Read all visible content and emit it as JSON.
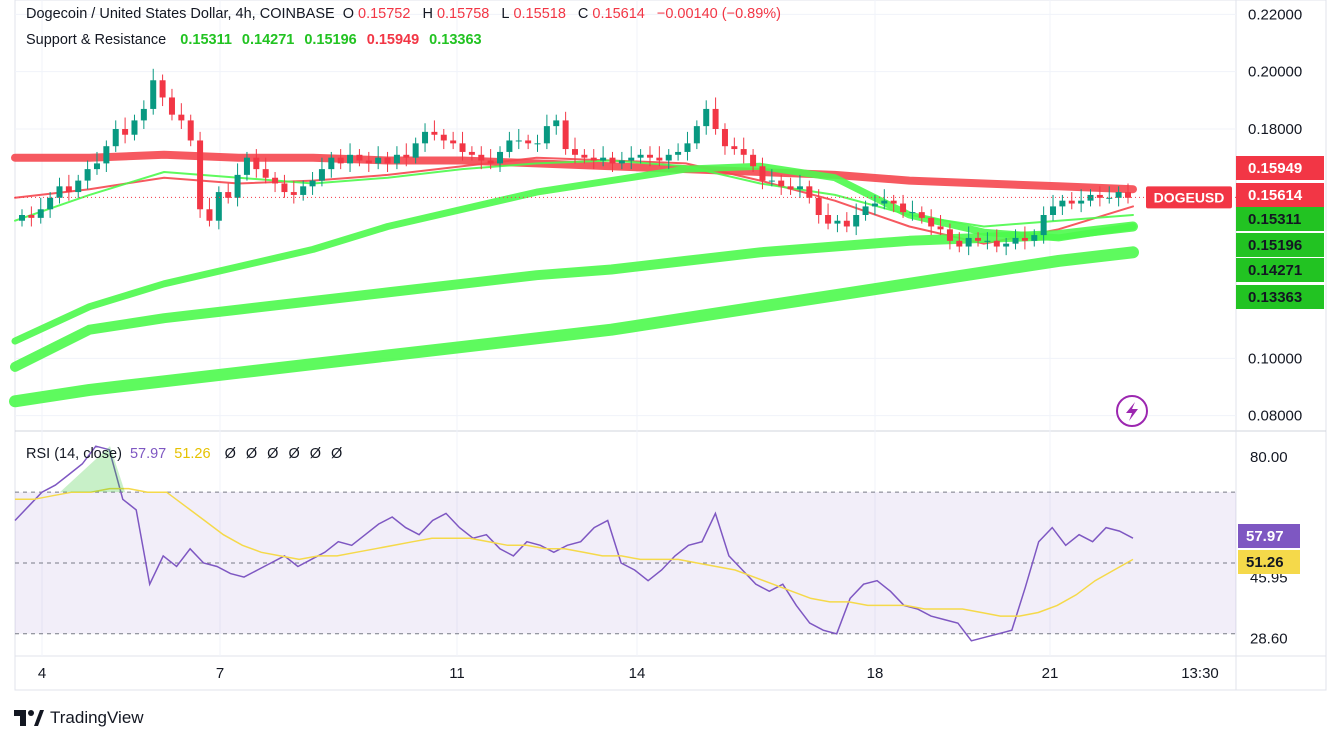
{
  "header": {
    "symbol_line": "Dogecoin / United States Dollar, 4h, COINBASE",
    "o_label": "O",
    "o_value": "0.15752",
    "h_label": "H",
    "h_value": "0.15758",
    "l_label": "L",
    "l_value": "0.15518",
    "c_label": "C",
    "c_value": "0.15614",
    "change": "−0.00140 (−0.89%)",
    "sr_label": "Support & Resistance",
    "sr_values": [
      "0.15311",
      "0.14271",
      "0.15196",
      "0.15949",
      "0.13363"
    ],
    "sr_colors": [
      "#22c322",
      "#22c322",
      "#22c322",
      "#f23645",
      "#22c322"
    ],
    "rsi_label": "RSI (14, close)",
    "rsi_value": "57.97",
    "rsi_ma_value": "51.26",
    "rsi_extra": [
      "Ø",
      "Ø",
      "Ø",
      "Ø",
      "Ø",
      "Ø"
    ]
  },
  "footer": {
    "brand": "TradingView"
  },
  "colors": {
    "up": "#089981",
    "down": "#f23645",
    "rsi": "#7e57c2",
    "rsi_ma": "#f5d94a",
    "green_line": "#4cfa4c",
    "red_line": "#f5474f"
  },
  "chart_data": [
    {
      "type": "candlestick",
      "ylim": [
        0.075,
        0.225
      ],
      "y_ticks": [
        "0.22000",
        "0.20000",
        "0.18000",
        "0.10000",
        "0.08000"
      ],
      "x_ticks": [
        "4",
        "7",
        "11",
        "14",
        "18",
        "21",
        "13:30"
      ],
      "price_labels": [
        {
          "text": "0.15949",
          "value": 0.15949,
          "color": "#f23645"
        },
        {
          "text": "0.15614",
          "value": 0.15614,
          "color": "#f23645"
        },
        {
          "text": "0.15311",
          "value": 0.15311,
          "color": "#22c322"
        },
        {
          "text": "0.15196",
          "value": 0.15196,
          "color": "#22c322"
        },
        {
          "text": "0.14271",
          "value": 0.14271,
          "color": "#22c322"
        },
        {
          "text": "0.13363",
          "value": 0.13363,
          "color": "#22c322"
        }
      ],
      "symbol_tag": "DOGEUSD",
      "closes": [
        0.15,
        0.149,
        0.152,
        0.156,
        0.16,
        0.158,
        0.162,
        0.166,
        0.168,
        0.174,
        0.18,
        0.178,
        0.183,
        0.187,
        0.197,
        0.191,
        0.185,
        0.183,
        0.176,
        0.152,
        0.148,
        0.158,
        0.156,
        0.164,
        0.17,
        0.166,
        0.163,
        0.161,
        0.158,
        0.157,
        0.16,
        0.162,
        0.166,
        0.17,
        0.168,
        0.171,
        0.169,
        0.168,
        0.17,
        0.168,
        0.171,
        0.17,
        0.175,
        0.179,
        0.178,
        0.176,
        0.175,
        0.172,
        0.171,
        0.169,
        0.168,
        0.172,
        0.176,
        0.176,
        0.175,
        0.175,
        0.181,
        0.183,
        0.173,
        0.171,
        0.17,
        0.169,
        0.17,
        0.168,
        0.169,
        0.17,
        0.171,
        0.17,
        0.169,
        0.171,
        0.172,
        0.175,
        0.181,
        0.187,
        0.18,
        0.174,
        0.173,
        0.171,
        0.167,
        0.162,
        0.162,
        0.16,
        0.159,
        0.16,
        0.156,
        0.15,
        0.147,
        0.148,
        0.146,
        0.15,
        0.153,
        0.154,
        0.155,
        0.154,
        0.151,
        0.151,
        0.149,
        0.146,
        0.145,
        0.141,
        0.139,
        0.142,
        0.141,
        0.141,
        0.139,
        0.14,
        0.142,
        0.141,
        0.143,
        0.15,
        0.153,
        0.155,
        0.154,
        0.155,
        0.157,
        0.156,
        0.156,
        0.158,
        0.156
      ],
      "series": [
        {
          "name": "",
          "color": "#f5474f",
          "width": 8,
          "values": [
            0.17,
            0.17,
            0.171,
            0.17,
            0.17,
            0.169,
            0.169,
            0.168,
            0.167,
            0.166,
            0.165,
            0.164,
            0.162,
            0.161,
            0.16,
            0.159
          ]
        },
        {
          "name": "",
          "color": "#f5474f",
          "width": 2,
          "values": [
            0.156,
            0.159,
            0.163,
            0.161,
            0.162,
            0.164,
            0.167,
            0.17,
            0.169,
            0.168,
            0.162,
            0.155,
            0.146,
            0.14,
            0.145,
            0.153
          ]
        },
        {
          "name": "",
          "color": "#4cfa4c",
          "width": 2,
          "values": [
            0.148,
            0.157,
            0.165,
            0.163,
            0.161,
            0.163,
            0.166,
            0.168,
            0.169,
            0.167,
            0.161,
            0.157,
            0.15,
            0.146,
            0.148,
            0.15
          ]
        },
        {
          "name": "",
          "color": "#4cfa4c",
          "width": 7,
          "values": [
            0.106,
            0.118,
            0.126,
            0.132,
            0.138,
            0.146,
            0.152,
            0.158,
            0.162,
            0.166,
            0.167,
            0.163,
            0.15,
            0.144,
            0.142,
            0.146
          ]
        },
        {
          "name": "",
          "color": "#4cfa4c",
          "width": 10,
          "values": [
            0.097,
            0.11,
            0.114,
            0.117,
            0.12,
            0.123,
            0.126,
            0.129,
            0.131,
            0.134,
            0.137,
            0.139,
            0.141,
            0.142,
            0.143,
            0.146
          ]
        },
        {
          "name": "",
          "color": "#4cfa4c",
          "width": 12,
          "values": [
            0.085,
            0.089,
            0.092,
            0.095,
            0.098,
            0.101,
            0.104,
            0.107,
            0.11,
            0.114,
            0.118,
            0.122,
            0.126,
            0.13,
            0.134,
            0.137
          ]
        }
      ]
    },
    {
      "type": "line",
      "ylim": [
        24,
        87
      ],
      "y_ticks": [
        "80.00",
        "45.95",
        "28.60"
      ],
      "band": [
        70,
        30
      ],
      "mid_line": 50,
      "value_labels": [
        {
          "text": "57.97",
          "value": 57.97,
          "color": "#7e57c2"
        },
        {
          "text": "51.26",
          "value": 51.26,
          "color": "#f5d94a"
        }
      ],
      "series": [
        {
          "name": "RSI",
          "color": "#7e57c2",
          "values": [
            62,
            66,
            70,
            72,
            75,
            78,
            83,
            82,
            68,
            65,
            44,
            52,
            49,
            54,
            50,
            49,
            47,
            46,
            48,
            50,
            52,
            49,
            51,
            53,
            56,
            55,
            58,
            61,
            63,
            60,
            58,
            62,
            64,
            60,
            57,
            58,
            54,
            52,
            56,
            55,
            53,
            55,
            56,
            60,
            62,
            50,
            48,
            45,
            48,
            52,
            55,
            56,
            64,
            52,
            48,
            44,
            42,
            44,
            38,
            33,
            31,
            30,
            40,
            44,
            45,
            42,
            38,
            37,
            35,
            34,
            33,
            28,
            29,
            30,
            31,
            43,
            56,
            60,
            55,
            58,
            56,
            60,
            59,
            57
          ]
        },
        {
          "name": "MA",
          "color": "#f5d94a",
          "values": [
            68,
            68,
            69,
            70,
            70,
            71,
            71,
            70,
            70,
            66,
            62,
            58,
            55,
            53,
            52,
            51,
            52,
            52,
            53,
            54,
            55,
            56,
            57,
            57,
            57,
            56,
            55,
            55,
            54,
            54,
            53,
            52,
            52,
            51,
            51,
            51,
            50,
            49,
            48,
            46,
            44,
            42,
            40,
            39,
            39,
            38,
            38,
            38,
            37,
            37,
            37,
            36,
            35,
            35,
            36,
            38,
            41,
            45,
            48,
            51
          ]
        }
      ]
    }
  ]
}
